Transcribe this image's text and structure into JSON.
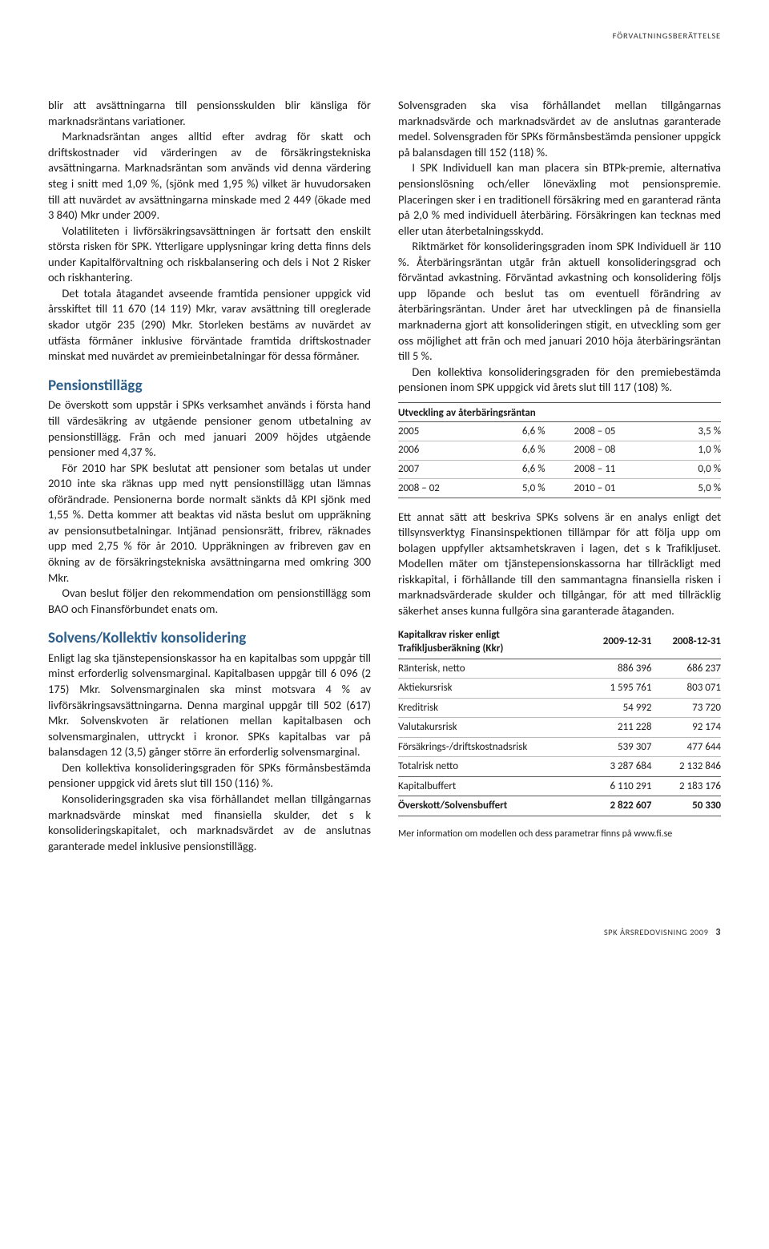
{
  "running_head": "FÖRVALTNINGSBERÄTTELSE",
  "left": {
    "p1": "blir att avsättningarna till pensionsskulden blir känsliga för marknadsräntans variationer.",
    "p2": "Marknadsräntan anges alltid efter avdrag för skatt och driftskostnader vid värderingen av de försäkringstekniska avsättningarna. Marknadsräntan som används vid denna värdering steg i snitt med 1,09 %, (sjönk med 1,95 %) vilket är huvudorsaken till att nuvärdet av avsättningarna minskade med 2 449 (ökade med 3 840) Mkr under 2009.",
    "p3": "Volatiliteten i livförsäkringsavsättningen är fortsatt den enskilt största risken för SPK. Ytterligare upplysningar kring detta finns dels under Kapitalförvaltning och riskbalansering och dels i Not 2 Risker och riskhantering.",
    "p4": "Det totala åtagandet avseende framtida pensioner uppgick vid årsskiftet till 11 670 (14 119) Mkr, varav avsättning till oreglerade skador utgör 235 (290) Mkr. Storleken bestäms av nuvärdet av utfästa förmåner inklusive förväntade framtida driftskostnader minskat med nuvärdet av premieinbetalningar för dessa förmåner.",
    "h_pens": "Pensionstillägg",
    "p5": "De överskott som uppstår i SPKs verksamhet används i första hand till värdesäkring av utgående pensioner genom utbetalning av pensionstillägg. Från och med januari 2009 höjdes utgående pensioner med 4,37 %.",
    "p6": "För 2010 har SPK beslutat att pensioner som betalas ut under 2010 inte ska räknas upp med nytt pensionstillägg utan lämnas oförändrade. Pensionerna borde normalt sänkts då KPI sjönk med 1,55 %. Detta kommer att beaktas vid nästa beslut om uppräkning av pensionsutbetalningar. Intjänad pensionsrätt, fribrev, räknades upp med 2,75 % för år 2010. Uppräkningen av fribreven gav en ökning av de försäkringstekniska avsättningarna med omkring 300 Mkr.",
    "p7": "Ovan beslut följer den rekommendation om pensionstillägg som BAO och Finansförbundet enats om.",
    "h_solv": "Solvens/Kollektiv konsolidering",
    "p8": "Enligt lag ska tjänstepensionskassor ha en kapitalbas som uppgår till minst erforderlig solvensmarginal. Kapitalbasen uppgår till 6 096 (2 175) Mkr. Solvensmarginalen ska minst motsvara 4 % av livförsäkringsavsättningarna. Denna marginal uppgår till 502 (617) Mkr. Solvenskvoten är relationen mellan kapitalbasen och solvensmarginalen, uttryckt i kronor. SPKs kapitalbas var på balansdagen 12 (3,5) gånger större än erforderlig solvensmarginal.",
    "p9": "Den kollektiva konsolideringsgraden för SPKs förmånsbestämda pensioner uppgick vid årets slut till 150 (116) %.",
    "p10": "Konsolideringsgraden ska visa förhållandet mellan tillgångarnas marknadsvärde minskat med finansiella skulder, det s k konsolideringskapitalet, och marknadsvärdet av de anslutnas garanterade medel inklusive pensionstillägg."
  },
  "right": {
    "p1": "Solvensgraden ska visa förhållandet mellan tillgångarnas marknadsvärde och marknadsvärdet av de anslutnas garanterade medel. Solvensgraden för SPKs förmånsbestämda pensioner uppgick på balansdagen till 152 (118) %.",
    "p2": "I SPK Individuell kan man placera sin BTPk-premie, alternativa pensionslösning och/eller löneväxling mot pensionspremie. Placeringen sker i en traditionell försäkring med en garanterad ränta på 2,0 % med individuell återbäring. Försäkringen kan tecknas med eller utan återbetalningsskydd.",
    "p3": "Riktmärket för konsolideringsgraden inom SPK Individuell är 110 %. Återbäringsräntan utgår från aktuell konsolideringsgrad och förväntad avkastning. Förväntad avkastning och konsolidering följs upp löpande och beslut tas om eventuell förändring av återbäringsräntan. Under året har utvecklingen på de finansiella marknaderna gjort att konsolideringen stigit, en utveckling som ger oss möjlighet att från och med januari 2010 höja återbäringsräntan till 5 %.",
    "p4": "Den kollektiva konsolideringsgraden för den premiebestämda pensionen inom SPK uppgick vid årets slut till 117 (108) %.",
    "table1_caption": "Utveckling av återbäringsräntan",
    "table1": [
      [
        "2005",
        "6,6 %",
        "2008 – 05",
        "3,5 %"
      ],
      [
        "2006",
        "6,6 %",
        "2008 – 08",
        "1,0 %"
      ],
      [
        "2007",
        "6,6 %",
        "2008 – 11",
        "0,0 %"
      ],
      [
        "2008 – 02",
        "5,0 %",
        "2010 – 01",
        "5,0 %"
      ]
    ],
    "p5": "Ett annat sätt att beskriva SPKs solvens är en analys enligt det tillsynsverktyg Finansinspektionen tillämpar för att följa upp om bolagen uppfyller aktsamhetskraven i lagen, det s k Trafikljuset. Modellen mäter om tjänstepensionskassorna har tillräckligt med riskkapital, i förhållande till den sammantagna finansiella risken i marknadsvärderade skulder och tillgångar, för att med tillräcklig säkerhet anses kunna fullgöra sina garanterade åtaganden.",
    "table2_caption_l1": "Kapitalkrav risker enligt",
    "table2_caption_l2": "Trafikljusberäkning (Kkr)",
    "table2_heads": [
      "",
      "2009-12-31",
      "2008-12-31"
    ],
    "table2": [
      [
        "Ränterisk, netto",
        "886 396",
        "686 237"
      ],
      [
        "Aktiekursrisk",
        "1 595 761",
        "803 071"
      ],
      [
        "Kreditrisk",
        "54 992",
        "73 720"
      ],
      [
        "Valutakursrisk",
        "211 228",
        "92 174"
      ],
      [
        "Försäkrings-/driftskostnadsrisk",
        "539 307",
        "477 644"
      ]
    ],
    "table2_total": [
      "Totalrisk netto",
      "3 287 684",
      "2 132 846"
    ],
    "table2_buf": [
      "Kapitalbuffert",
      "6 110 291",
      "2 183 176"
    ],
    "table2_over": [
      "Överskott/Solvensbuffert",
      "2 822 607",
      "50 330"
    ],
    "footnote": "Mer information om modellen och dess parametrar finns på www.fi.se"
  },
  "footer": {
    "text": "SPK ÅRSREDOVISNING 2009",
    "page": "3"
  }
}
